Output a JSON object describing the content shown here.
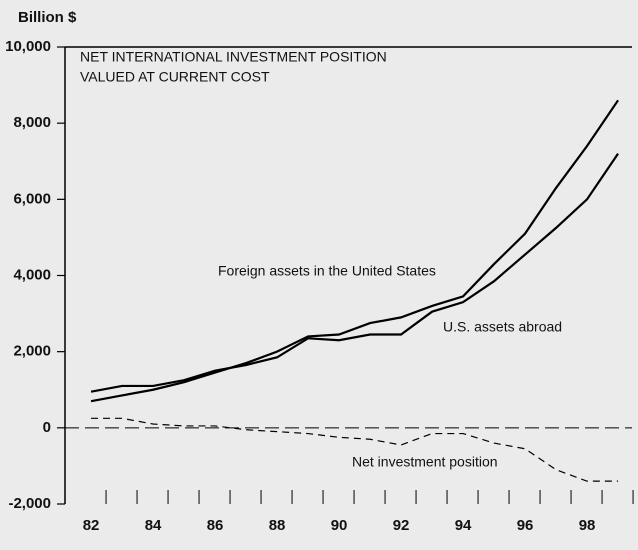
{
  "chart_data": {
    "type": "line",
    "title": "NET INTERNATIONAL INVESTMENT POSITION",
    "subtitle": "VALUED  AT CURRENT COST",
    "y_label": "Billion $",
    "x": [
      82,
      83,
      84,
      85,
      86,
      87,
      88,
      89,
      90,
      91,
      92,
      93,
      94,
      95,
      96,
      97,
      98,
      99
    ],
    "series": [
      {
        "name": "U.S.  assets abroad",
        "color": "#000000",
        "dashed": false,
        "values": [
          950,
          1100,
          1100,
          1250,
          1500,
          1650,
          1850,
          2350,
          2300,
          2450,
          2450,
          3050,
          3300,
          3850,
          4550,
          5250,
          6000,
          7200
        ]
      },
      {
        "name": "Foreign assets in the United States",
        "color": "#000000",
        "dashed": false,
        "values": [
          700,
          850,
          1000,
          1200,
          1450,
          1700,
          2000,
          2400,
          2450,
          2750,
          2900,
          3200,
          3450,
          4300,
          5100,
          6300,
          7400,
          8600
        ]
      },
      {
        "name": "Net investment position",
        "color": "#000000",
        "dashed": true,
        "values": [
          250,
          250,
          100,
          50,
          50,
          -50,
          -100,
          -150,
          -250,
          -300,
          -450,
          -150,
          -150,
          -400,
          -550,
          -1100,
          -1400,
          -1400
        ]
      }
    ],
    "xlim": [
      81.16,
      99.45
    ],
    "ylim": [
      -2000,
      10000
    ],
    "xticks": [
      82,
      84,
      86,
      88,
      90,
      92,
      94,
      96,
      98
    ],
    "yticks": [
      {
        "value": -2000,
        "label": "-2,000"
      },
      0,
      {
        "value": 2000,
        "label": "2,000"
      },
      {
        "value": 4000,
        "label": "4,000"
      },
      {
        "value": 6000,
        "label": "6,000"
      },
      {
        "value": 8000,
        "label": "8,000"
      },
      {
        "value": 10000,
        "label": "10,000"
      }
    ],
    "zero_line": true
  }
}
